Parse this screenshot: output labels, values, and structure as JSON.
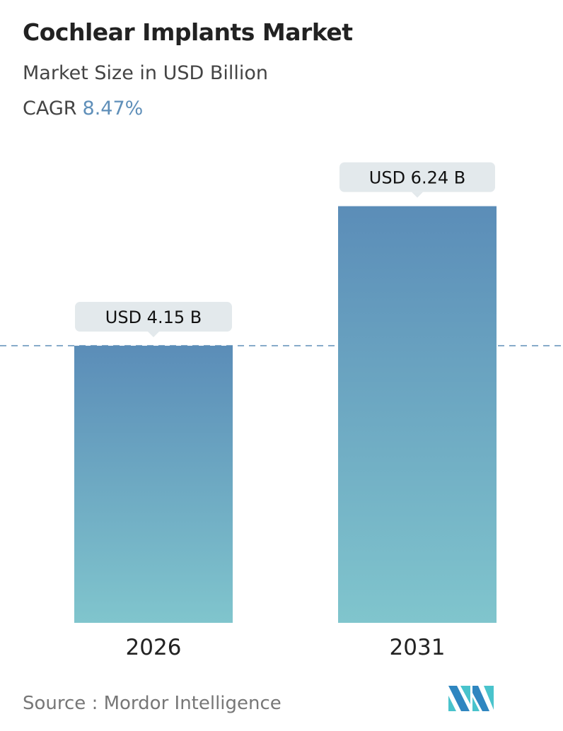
{
  "header": {
    "title": "Cochlear Implants Market",
    "subtitle": "Market Size in USD Billion",
    "cagr_label": "CAGR",
    "cagr_value": "8.47%"
  },
  "chart_data": {
    "type": "bar",
    "categories": [
      "2026",
      "2031"
    ],
    "values": [
      4.15,
      6.24
    ],
    "data_labels": [
      "USD 4.15 B",
      "USD 6.24 B"
    ],
    "ylim": [
      0,
      6.5
    ],
    "reference_line": 4.15,
    "grid": false,
    "colors": {
      "bar_top": "#5b8db8",
      "bar_bottom": "#80c5cd",
      "label_bg": "#e3e9ec",
      "dashed_line": "#5f8fb9"
    }
  },
  "footer": {
    "source": "Source :  Mordor Intelligence",
    "logo": "MN"
  }
}
